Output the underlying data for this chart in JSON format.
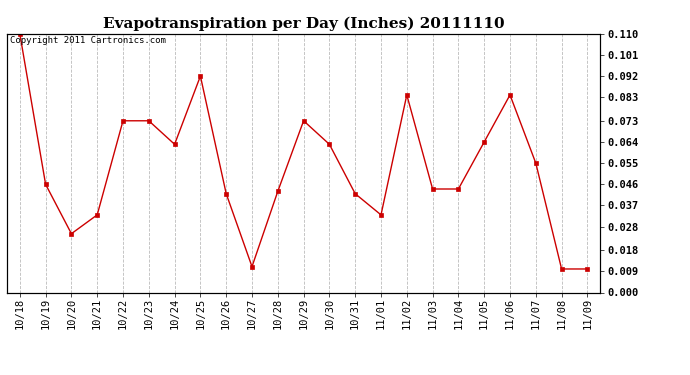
{
  "title": "Evapotranspiration per Day (Inches) 20111110",
  "copyright_text": "Copyright 2011 Cartronics.com",
  "x_labels": [
    "10/18",
    "10/19",
    "10/20",
    "10/21",
    "10/22",
    "10/23",
    "10/24",
    "10/25",
    "10/26",
    "10/27",
    "10/28",
    "10/29",
    "10/30",
    "10/31",
    "11/01",
    "11/02",
    "11/03",
    "11/04",
    "11/05",
    "11/06",
    "11/07",
    "11/08",
    "11/09"
  ],
  "y_values": [
    0.11,
    0.046,
    0.025,
    0.033,
    0.073,
    0.073,
    0.063,
    0.092,
    0.042,
    0.011,
    0.043,
    0.073,
    0.063,
    0.042,
    0.033,
    0.084,
    0.044,
    0.044,
    0.064,
    0.084,
    0.055,
    0.01,
    0.01
  ],
  "line_color": "#cc0000",
  "marker": "s",
  "marker_size": 2.5,
  "ylim": [
    0.0,
    0.11
  ],
  "yticks": [
    0.0,
    0.009,
    0.018,
    0.028,
    0.037,
    0.046,
    0.055,
    0.064,
    0.073,
    0.083,
    0.092,
    0.101,
    0.11
  ],
  "background_color": "#ffffff",
  "grid_color": "#bbbbbb",
  "title_fontsize": 11,
  "tick_fontsize": 7.5,
  "copyright_fontsize": 6.5
}
